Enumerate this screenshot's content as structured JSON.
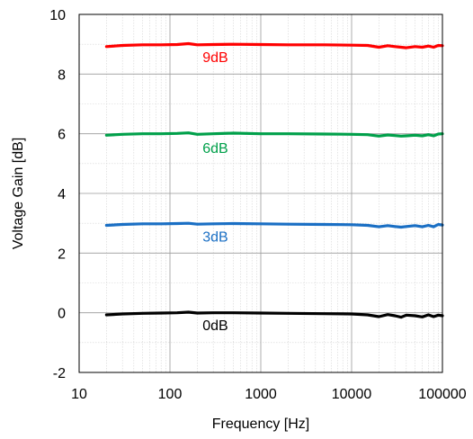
{
  "chart_data": {
    "type": "line",
    "xlabel": "Frequency [Hz]",
    "ylabel": "Voltage Gain [dB]",
    "xscale": "log",
    "xlim": [
      10,
      100000
    ],
    "ylim": [
      -2,
      10
    ],
    "grid": true,
    "x_ticks": [
      "10",
      "100",
      "1000",
      "10000",
      "100000"
    ],
    "y_ticks": [
      "-2",
      "0",
      "2",
      "4",
      "6",
      "8",
      "10"
    ],
    "series": [
      {
        "name": "9dB",
        "color": "#ff0000",
        "x": [
          20,
          30,
          50,
          80,
          120,
          160,
          200,
          300,
          500,
          1000,
          2000,
          5000,
          10000,
          15000,
          20000,
          25000,
          30000,
          35000,
          40000,
          50000,
          60000,
          70000,
          80000,
          90000,
          100000
        ],
        "y": [
          8.92,
          8.96,
          8.98,
          8.98,
          8.99,
          9.02,
          8.98,
          8.99,
          9.0,
          8.99,
          8.98,
          8.98,
          8.97,
          8.96,
          8.9,
          8.95,
          8.92,
          8.9,
          8.88,
          8.92,
          8.9,
          8.94,
          8.9,
          8.96,
          8.95
        ]
      },
      {
        "name": "6dB",
        "color": "#00a04a",
        "x": [
          20,
          30,
          50,
          80,
          120,
          160,
          200,
          300,
          500,
          1000,
          2000,
          5000,
          10000,
          15000,
          20000,
          25000,
          30000,
          35000,
          40000,
          50000,
          60000,
          70000,
          80000,
          90000,
          100000
        ],
        "y": [
          5.95,
          5.98,
          6.0,
          6.0,
          6.01,
          6.03,
          5.98,
          6.0,
          6.02,
          6.0,
          6.0,
          5.99,
          5.98,
          5.97,
          5.92,
          5.96,
          5.94,
          5.92,
          5.93,
          5.95,
          5.93,
          5.97,
          5.93,
          5.99,
          6.0
        ]
      },
      {
        "name": "3dB",
        "color": "#1a6fc4",
        "x": [
          20,
          30,
          50,
          80,
          120,
          160,
          200,
          300,
          500,
          1000,
          2000,
          5000,
          10000,
          15000,
          20000,
          25000,
          30000,
          35000,
          40000,
          50000,
          60000,
          70000,
          80000,
          90000,
          100000
        ],
        "y": [
          2.93,
          2.96,
          2.98,
          2.98,
          2.99,
          3.0,
          2.97,
          2.98,
          2.99,
          2.98,
          2.97,
          2.96,
          2.95,
          2.93,
          2.88,
          2.92,
          2.89,
          2.87,
          2.89,
          2.92,
          2.88,
          2.93,
          2.88,
          2.96,
          2.94
        ]
      },
      {
        "name": "0dB",
        "color": "#000000",
        "x": [
          20,
          30,
          50,
          80,
          120,
          160,
          200,
          300,
          500,
          1000,
          2000,
          5000,
          10000,
          15000,
          20000,
          25000,
          30000,
          35000,
          40000,
          50000,
          60000,
          70000,
          80000,
          90000,
          100000
        ],
        "y": [
          -0.07,
          -0.04,
          -0.02,
          -0.01,
          0.0,
          0.02,
          -0.01,
          0.0,
          0.0,
          -0.01,
          -0.02,
          -0.03,
          -0.04,
          -0.07,
          -0.13,
          -0.06,
          -0.1,
          -0.15,
          -0.08,
          -0.1,
          -0.14,
          -0.07,
          -0.13,
          -0.08,
          -0.1
        ]
      }
    ],
    "annotations": [
      {
        "text": "9dB",
        "color": "#ff0000",
        "x": 316,
        "y": 8.4
      },
      {
        "text": "6dB",
        "color": "#00a04a",
        "x": 316,
        "y": 5.35
      },
      {
        "text": "3dB",
        "color": "#1a6fc4",
        "x": 316,
        "y": 2.38
      },
      {
        "text": "0dB",
        "color": "#000000",
        "x": 316,
        "y": -0.58
      }
    ]
  }
}
